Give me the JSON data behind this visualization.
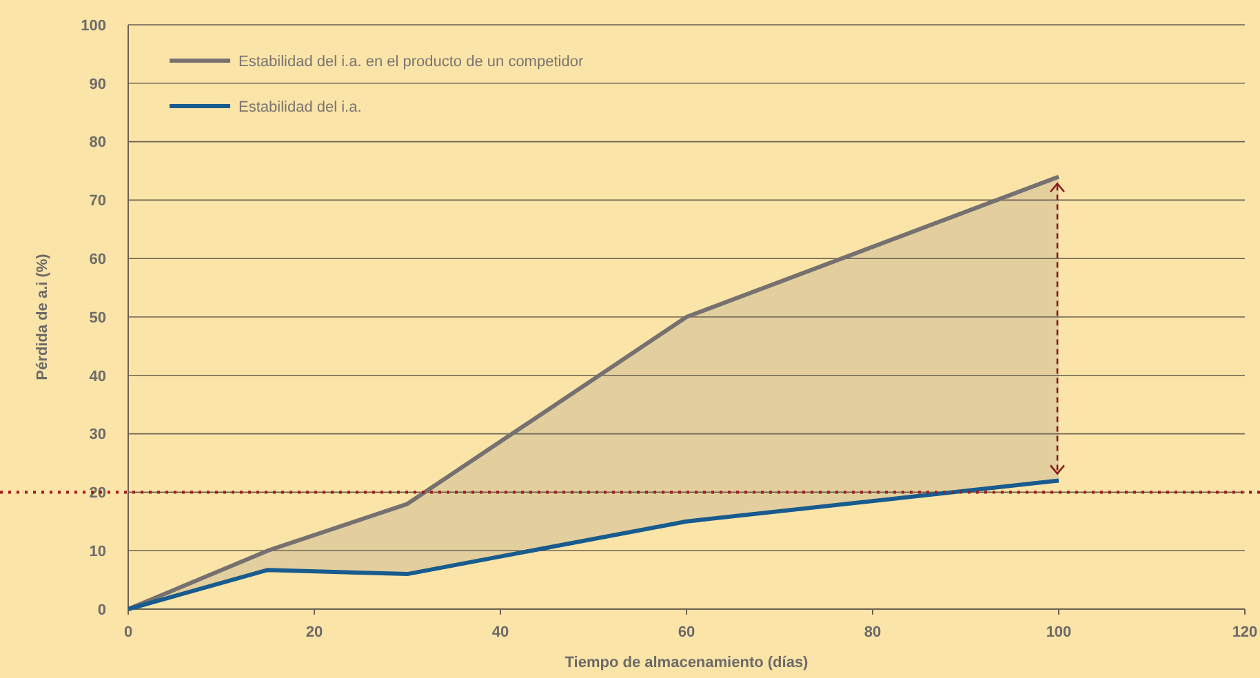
{
  "chart_data": {
    "type": "line",
    "xlabel": "Tiempo de almacenamiento (días)",
    "ylabel": "Pérdida de a.i (%)",
    "xlim": [
      0,
      120
    ],
    "xticks": [
      0,
      20,
      40,
      60,
      80,
      100,
      120
    ],
    "ylim": [
      0,
      100
    ],
    "yticks": [
      0,
      10,
      20,
      30,
      40,
      50,
      60,
      70,
      80,
      90,
      100
    ],
    "grid": "y",
    "legend": "top left",
    "marker": "none",
    "series": [
      {
        "name": "Estabilidad del i.a. en el producto de un competidor",
        "color": "#767170",
        "x": [
          0,
          15,
          30,
          60,
          100
        ],
        "values": [
          0,
          10,
          18,
          50,
          74
        ],
        "lower": [
          0,
          6.7,
          6,
          15,
          22
        ],
        "upper": [
          0,
          10,
          18,
          50,
          74
        ]
      },
      {
        "name": "Estabilidad del i.a.",
        "color": "#185b8e",
        "x": [
          0,
          15,
          30,
          60,
          100
        ],
        "values": [
          0,
          6.7,
          6,
          15,
          22
        ]
      }
    ],
    "ref_lines": [
      {
        "axis": "y",
        "value": 20,
        "color": "#a01c1c",
        "line_style": "dotted"
      }
    ]
  }
}
